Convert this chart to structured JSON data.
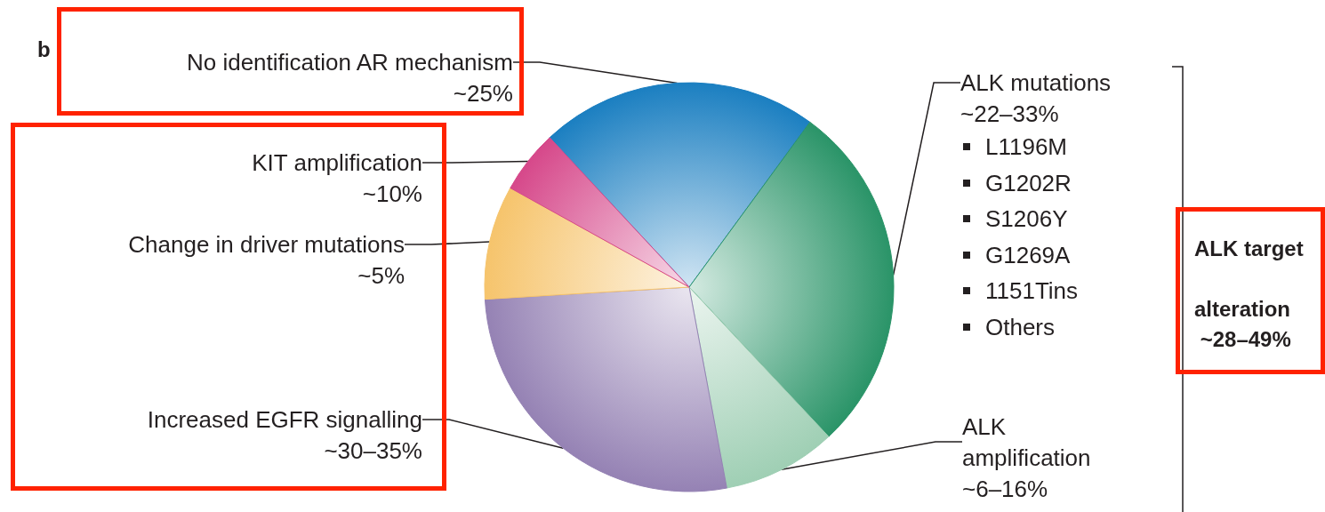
{
  "chart_data": {
    "type": "pie",
    "categories": [
      "No identification AR mechanism",
      "ALK mutations",
      "ALK amplification",
      "Increased EGFR signalling",
      "Change in driver mutations",
      "KIT amplification"
    ],
    "values": [
      22,
      28,
      9,
      27,
      9,
      5
    ],
    "colors": [
      "#1b7fc1",
      "#2a9468",
      "#9fcfb4",
      "#9582b4",
      "#f6c46c",
      "#d6488a"
    ],
    "annotations": [
      "b",
      "~25%",
      "~22–33%",
      "~6–16%",
      "~30–35%",
      "~5%",
      "~10%",
      "L1196M",
      "G1202R",
      "S1206Y",
      "G1269A",
      "1151Tins",
      "Others",
      "ALK target alteration ~28–49%"
    ]
  }
}
